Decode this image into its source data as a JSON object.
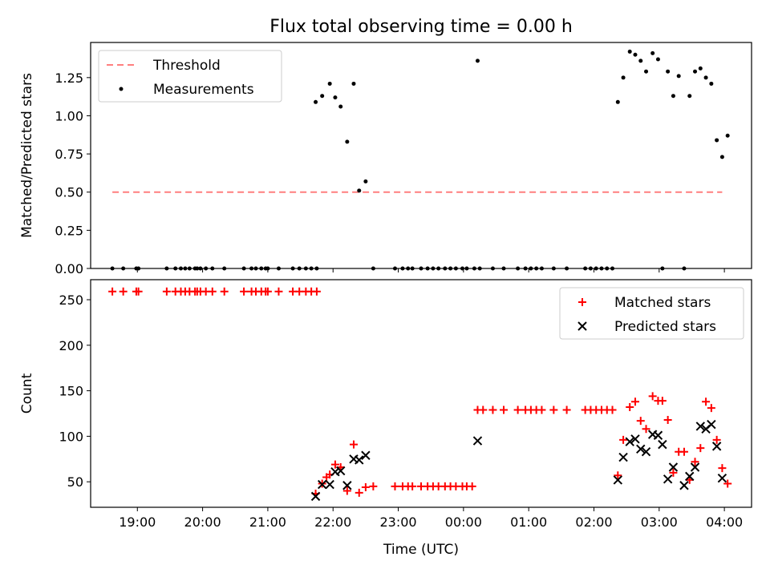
{
  "title": "Flux total observing time = 0.00 h",
  "chart_data": [
    {
      "type": "scatter",
      "ylabel": "Matched/Predicted stars",
      "xlabel": "",
      "xlim": [
        "18:17",
        "04:25"
      ],
      "ylim": [
        0,
        1.48
      ],
      "yticks": [
        "0.00",
        "0.25",
        "0.50",
        "0.75",
        "1.00",
        "1.25"
      ],
      "xticks": [
        "19:00",
        "20:00",
        "21:00",
        "22:00",
        "23:00",
        "00:00",
        "01:00",
        "02:00",
        "03:00",
        "04:00"
      ],
      "show_xtick_labels": false,
      "legend": {
        "position": "top-left",
        "entries": [
          "Threshold",
          "Measurements"
        ]
      },
      "threshold": {
        "name": "Threshold",
        "value": 0.5,
        "x_start": "18:37",
        "x_end": "03:58",
        "color": "#ff7f7f",
        "style": "dashed"
      },
      "series": [
        {
          "name": "Measurements",
          "color": "#000000",
          "marker": "dot",
          "points": [
            [
              "18:37",
              0
            ],
            [
              "18:47",
              0
            ],
            [
              "18:59",
              0
            ],
            [
              "19:01",
              0
            ],
            [
              "19:27",
              0
            ],
            [
              "19:35",
              0
            ],
            [
              "19:40",
              0
            ],
            [
              "19:44",
              0
            ],
            [
              "19:48",
              0
            ],
            [
              "19:53",
              0
            ],
            [
              "19:55",
              0
            ],
            [
              "19:58",
              0
            ],
            [
              "20:03",
              0
            ],
            [
              "20:09",
              0
            ],
            [
              "20:20",
              0
            ],
            [
              "20:38",
              0
            ],
            [
              "20:45",
              0
            ],
            [
              "20:49",
              0
            ],
            [
              "20:54",
              0
            ],
            [
              "20:58",
              0
            ],
            [
              "21:00",
              0
            ],
            [
              "21:10",
              0
            ],
            [
              "21:23",
              0
            ],
            [
              "21:29",
              0
            ],
            [
              "21:35",
              0
            ],
            [
              "21:40",
              0
            ],
            [
              "21:45",
              0
            ],
            [
              "21:44",
              1.09
            ],
            [
              "21:50",
              1.13
            ],
            [
              "21:57",
              1.21
            ],
            [
              "22:02",
              1.12
            ],
            [
              "22:07",
              1.06
            ],
            [
              "22:13",
              0.83
            ],
            [
              "22:19",
              1.21
            ],
            [
              "22:24",
              0.51
            ],
            [
              "22:30",
              0.57
            ],
            [
              "22:37",
              0
            ],
            [
              "22:57",
              0
            ],
            [
              "23:04",
              0
            ],
            [
              "23:09",
              0
            ],
            [
              "23:13",
              0
            ],
            [
              "23:21",
              0
            ],
            [
              "23:27",
              0
            ],
            [
              "23:32",
              0
            ],
            [
              "23:37",
              0
            ],
            [
              "23:43",
              0
            ],
            [
              "23:48",
              0
            ],
            [
              "23:53",
              0
            ],
            [
              "23:59",
              0
            ],
            [
              "00:03",
              0
            ],
            [
              "00:10",
              0
            ],
            [
              "00:15",
              0
            ],
            [
              "00:27",
              0
            ],
            [
              "00:37",
              0
            ],
            [
              "00:50",
              0
            ],
            [
              "00:57",
              0
            ],
            [
              "01:02",
              0
            ],
            [
              "01:07",
              0
            ],
            [
              "01:12",
              0
            ],
            [
              "01:23",
              0
            ],
            [
              "01:35",
              0
            ],
            [
              "01:52",
              0
            ],
            [
              "01:57",
              0
            ],
            [
              "02:02",
              0
            ],
            [
              "02:07",
              0
            ],
            [
              "02:12",
              0
            ],
            [
              "02:17",
              0
            ],
            [
              "00:13",
              1.36
            ],
            [
              "02:22",
              1.09
            ],
            [
              "02:27",
              1.25
            ],
            [
              "02:33",
              1.42
            ],
            [
              "02:38",
              1.4
            ],
            [
              "02:43",
              1.36
            ],
            [
              "02:48",
              1.29
            ],
            [
              "02:54",
              1.41
            ],
            [
              "02:59",
              1.37
            ],
            [
              "03:03",
              0
            ],
            [
              "03:08",
              1.29
            ],
            [
              "03:13",
              1.13
            ],
            [
              "03:18",
              1.26
            ],
            [
              "03:23",
              0
            ],
            [
              "03:28",
              1.13
            ],
            [
              "03:33",
              1.29
            ],
            [
              "03:38",
              1.31
            ],
            [
              "03:43",
              1.25
            ],
            [
              "03:48",
              1.21
            ],
            [
              "03:53",
              0.84
            ],
            [
              "03:58",
              0.73
            ],
            [
              "04:03",
              0.87
            ]
          ]
        }
      ]
    },
    {
      "type": "scatter",
      "ylabel": "Count",
      "xlabel": "Time (UTC)",
      "xlim": [
        "18:17",
        "04:25"
      ],
      "ylim": [
        22,
        272
      ],
      "yticks": [
        "50",
        "100",
        "150",
        "200",
        "250"
      ],
      "xticks": [
        "19:00",
        "20:00",
        "21:00",
        "22:00",
        "23:00",
        "00:00",
        "01:00",
        "02:00",
        "03:00",
        "04:00"
      ],
      "show_xtick_labels": true,
      "legend": {
        "position": "top-right",
        "entries": [
          "Matched stars",
          "Predicted stars"
        ]
      },
      "series": [
        {
          "name": "Matched stars",
          "color": "#ff0000",
          "marker": "plus",
          "points": [
            [
              "18:37",
              259
            ],
            [
              "18:47",
              259
            ],
            [
              "18:59",
              259
            ],
            [
              "19:01",
              259
            ],
            [
              "19:27",
              259
            ],
            [
              "19:35",
              259
            ],
            [
              "19:40",
              259
            ],
            [
              "19:44",
              259
            ],
            [
              "19:48",
              259
            ],
            [
              "19:53",
              259
            ],
            [
              "19:55",
              259
            ],
            [
              "19:58",
              259
            ],
            [
              "20:03",
              259
            ],
            [
              "20:09",
              259
            ],
            [
              "20:20",
              259
            ],
            [
              "20:38",
              259
            ],
            [
              "20:45",
              259
            ],
            [
              "20:49",
              259
            ],
            [
              "20:54",
              259
            ],
            [
              "20:58",
              259
            ],
            [
              "21:00",
              259
            ],
            [
              "21:10",
              259
            ],
            [
              "21:23",
              259
            ],
            [
              "21:29",
              259
            ],
            [
              "21:35",
              259
            ],
            [
              "21:40",
              259
            ],
            [
              "21:45",
              259
            ],
            [
              "21:44",
              37
            ],
            [
              "21:50",
              48
            ],
            [
              "21:54",
              55
            ],
            [
              "21:57",
              58
            ],
            [
              "22:02",
              69
            ],
            [
              "22:07",
              66
            ],
            [
              "22:13",
              40
            ],
            [
              "22:19",
              91
            ],
            [
              "22:24",
              38
            ],
            [
              "22:30",
              44
            ],
            [
              "22:37",
              45
            ],
            [
              "22:57",
              45
            ],
            [
              "23:04",
              45
            ],
            [
              "23:09",
              45
            ],
            [
              "23:13",
              45
            ],
            [
              "23:21",
              45
            ],
            [
              "23:27",
              45
            ],
            [
              "23:32",
              45
            ],
            [
              "23:37",
              45
            ],
            [
              "23:43",
              45
            ],
            [
              "23:48",
              45
            ],
            [
              "23:53",
              45
            ],
            [
              "23:59",
              45
            ],
            [
              "00:03",
              45
            ],
            [
              "00:08",
              45
            ],
            [
              "00:13",
              129
            ],
            [
              "00:18",
              129
            ],
            [
              "00:27",
              129
            ],
            [
              "00:37",
              129
            ],
            [
              "00:50",
              129
            ],
            [
              "00:57",
              129
            ],
            [
              "01:02",
              129
            ],
            [
              "01:07",
              129
            ],
            [
              "01:12",
              129
            ],
            [
              "01:23",
              129
            ],
            [
              "01:35",
              129
            ],
            [
              "01:52",
              129
            ],
            [
              "01:57",
              129
            ],
            [
              "02:02",
              129
            ],
            [
              "02:07",
              129
            ],
            [
              "02:12",
              129
            ],
            [
              "02:17",
              129
            ],
            [
              "02:22",
              57
            ],
            [
              "02:27",
              96
            ],
            [
              "02:33",
              132
            ],
            [
              "02:38",
              138
            ],
            [
              "02:43",
              117
            ],
            [
              "02:48",
              108
            ],
            [
              "02:54",
              144
            ],
            [
              "02:59",
              139
            ],
            [
              "03:03",
              139
            ],
            [
              "03:08",
              118
            ],
            [
              "03:13",
              60
            ],
            [
              "03:18",
              83
            ],
            [
              "03:23",
              83
            ],
            [
              "03:28",
              52
            ],
            [
              "03:33",
              72
            ],
            [
              "03:38",
              87
            ],
            [
              "03:43",
              138
            ],
            [
              "03:48",
              131
            ],
            [
              "03:53",
              96
            ],
            [
              "03:58",
              65
            ],
            [
              "04:03",
              48
            ]
          ]
        },
        {
          "name": "Predicted stars",
          "color": "#000000",
          "marker": "x",
          "points": [
            [
              "21:44",
              34
            ],
            [
              "21:50",
              47
            ],
            [
              "21:57",
              47
            ],
            [
              "22:02",
              61
            ],
            [
              "22:07",
              62
            ],
            [
              "22:13",
              46
            ],
            [
              "22:19",
              75
            ],
            [
              "22:24",
              74
            ],
            [
              "22:30",
              79
            ],
            [
              "00:13",
              95
            ],
            [
              "02:22",
              52
            ],
            [
              "02:27",
              77
            ],
            [
              "02:33",
              94
            ],
            [
              "02:38",
              97
            ],
            [
              "02:43",
              86
            ],
            [
              "02:48",
              83
            ],
            [
              "02:54",
              102
            ],
            [
              "02:59",
              101
            ],
            [
              "03:03",
              91
            ],
            [
              "03:08",
              53
            ],
            [
              "03:13",
              66
            ],
            [
              "03:23",
              46
            ],
            [
              "03:28",
              56
            ],
            [
              "03:33",
              66
            ],
            [
              "03:38",
              111
            ],
            [
              "03:43",
              108
            ],
            [
              "03:48",
              113
            ],
            [
              "03:53",
              89
            ],
            [
              "03:58",
              54
            ]
          ]
        }
      ]
    }
  ]
}
